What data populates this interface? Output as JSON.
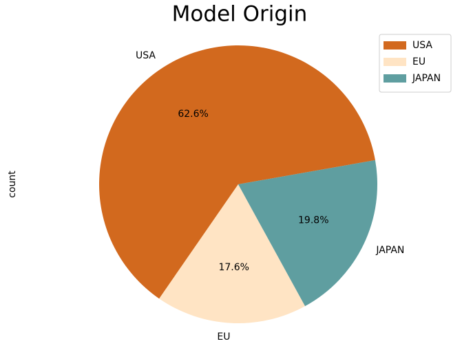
{
  "chart_data": {
    "type": "pie",
    "title": "Model Origin",
    "ylabel": "count",
    "categories": [
      "USA",
      "EU",
      "JAPAN"
    ],
    "values": [
      62.6,
      17.6,
      19.8
    ],
    "value_labels": [
      "62.6%",
      "17.6%",
      "19.8%"
    ],
    "colors": [
      "#d2691e",
      "#ffe4c4",
      "#5f9ea0"
    ],
    "legend": "upper right"
  }
}
